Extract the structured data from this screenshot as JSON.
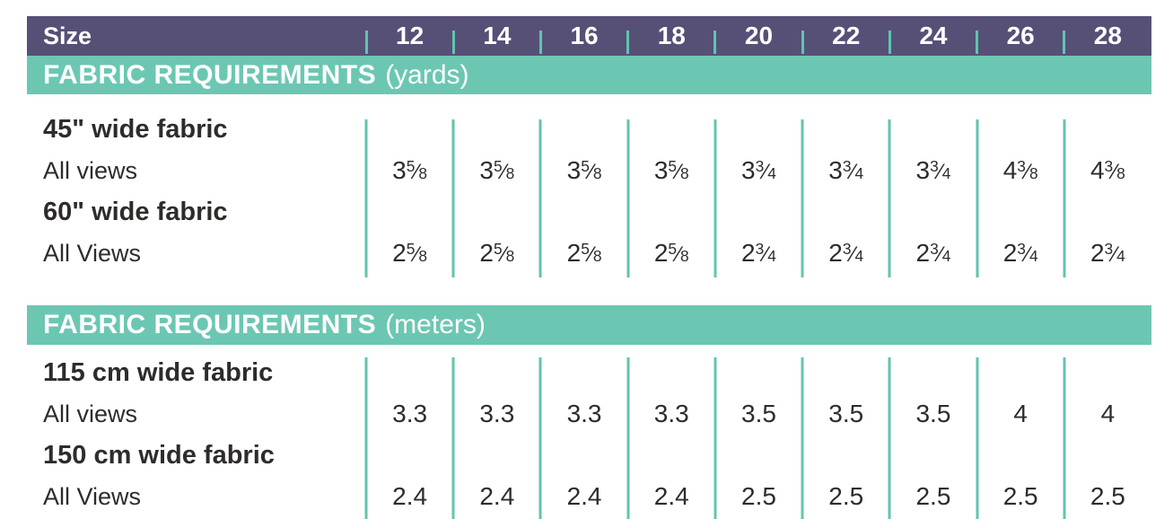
{
  "colors": {
    "header_purple": "#565077",
    "band_teal": "#6CC7B2",
    "divider_teal": "#62C4AF",
    "text_dark": "#2E2C2B",
    "text_white": "#FFFFFF"
  },
  "header": {
    "label": "Size",
    "sizes": [
      "12",
      "14",
      "16",
      "18",
      "20",
      "22",
      "24",
      "26",
      "28"
    ]
  },
  "sections": [
    {
      "band_bold": "FABRIC REQUIREMENTS",
      "band_normal": "(yards)",
      "rows": [
        {
          "label": "45\" wide fabric",
          "sublabel": "All views",
          "values": [
            "3 5/8",
            "3 5/8",
            "3 5/8",
            "3 5/8",
            "3 3/4",
            "3 3/4",
            "3 3/4",
            "4 3/8",
            "4 3/8"
          ]
        },
        {
          "label": "60\" wide fabric",
          "sublabel": "All Views",
          "values": [
            "2 5/8",
            "2 5/8",
            "2 5/8",
            "2 5/8",
            "2 3/4",
            "2 3/4",
            "2 3/4",
            "2 3/4",
            "2 3/4"
          ]
        }
      ]
    },
    {
      "band_bold": "FABRIC REQUIREMENTS",
      "band_normal": "(meters)",
      "rows": [
        {
          "label": "115 cm wide fabric",
          "sublabel": "All views",
          "values": [
            "3.3",
            "3.3",
            "3.3",
            "3.3",
            "3.5",
            "3.5",
            "3.5",
            "4",
            "4"
          ]
        },
        {
          "label": "150 cm wide fabric",
          "sublabel": "All Views",
          "values": [
            "2.4",
            "2.4",
            "2.4",
            "2.4",
            "2.5",
            "2.5",
            "2.5",
            "2.5",
            "2.5"
          ]
        }
      ]
    }
  ]
}
